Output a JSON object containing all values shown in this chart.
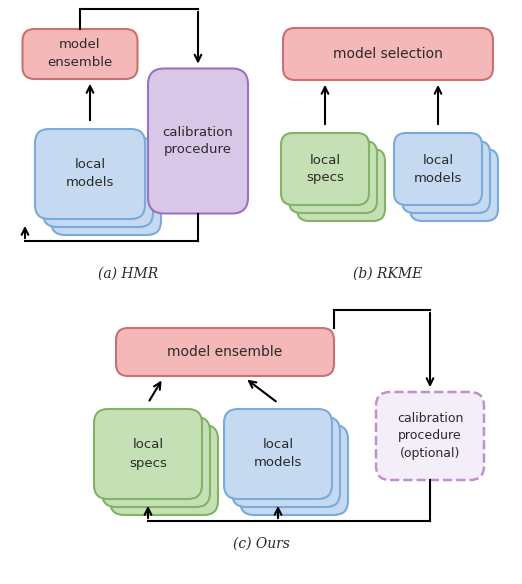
{
  "background_color": "#ffffff",
  "fig_width": 5.22,
  "fig_height": 5.84,
  "dpi": 100,
  "caption_a": "(a) HMR",
  "caption_b": "(b) RKME",
  "caption_c": "(c) Ours",
  "colors": {
    "red_fill": "#f4b8b8",
    "red_edge": "#cc7070",
    "blue_fill": "#c5d9f0",
    "blue_edge": "#7aabdb",
    "green_fill": "#c5e0b4",
    "green_edge": "#82b366",
    "purple_fill": "#d9c7e8",
    "purple_edge": "#9b72c0",
    "dashed_fill": "#f3eef8",
    "dashed_edge": "#c090d0"
  }
}
